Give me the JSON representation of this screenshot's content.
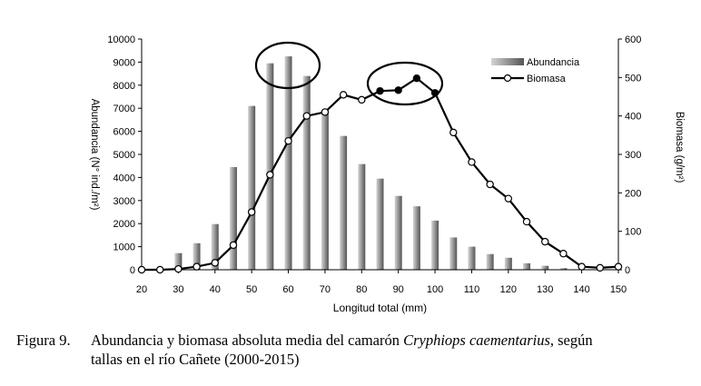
{
  "chart_data": {
    "type": "bar+line",
    "xlabel": "Longitud total (mm)",
    "ylabel_left": "Abundancia (N° ind./m²)",
    "ylabel_right": "Biomasa (g/m²)",
    "ylim_left": [
      0,
      10000
    ],
    "ylim_right": [
      0,
      600
    ],
    "yticks_left": [
      "0",
      "1000",
      "2000",
      "3000",
      "4000",
      "5000",
      "6000",
      "7000",
      "8000",
      "9000",
      "10000"
    ],
    "yticks_right": [
      "0",
      "100",
      "200",
      "300",
      "400",
      "500",
      "600"
    ],
    "xticks": [
      "20",
      "30",
      "40",
      "50",
      "60",
      "70",
      "80",
      "90",
      "100",
      "110",
      "120",
      "130",
      "140",
      "150"
    ],
    "x": [
      20,
      25,
      30,
      35,
      40,
      45,
      50,
      55,
      60,
      65,
      70,
      75,
      80,
      85,
      90,
      95,
      100,
      105,
      110,
      115,
      120,
      125,
      130,
      135,
      140,
      145,
      150
    ],
    "series": [
      {
        "name": "Abundancia",
        "type": "bar",
        "axis": "left",
        "values": [
          0,
          0,
          720,
          1150,
          1980,
          4450,
          7100,
          8950,
          9250,
          8400,
          6950,
          5800,
          4580,
          3950,
          3200,
          2750,
          2130,
          1400,
          1000,
          680,
          520,
          280,
          170,
          70,
          0,
          0,
          0
        ]
      },
      {
        "name": "Biomasa",
        "type": "line",
        "axis": "right",
        "values": [
          0,
          0,
          2,
          8,
          18,
          64,
          150,
          247,
          335,
          400,
          410,
          455,
          442,
          465,
          467,
          498,
          460,
          357,
          280,
          222,
          185,
          125,
          73,
          42,
          8,
          5,
          8
        ],
        "filled_markers_at": [
          85,
          90,
          95,
          100
        ]
      }
    ],
    "annotations": [
      "ellipse around peak bars at 55-60 mm",
      "ellipse around biomass peak at 85-100 mm"
    ],
    "legend_placement": "top-right",
    "grid": false
  },
  "caption": {
    "figure_label": "Figura 9.",
    "text_before_italic": "Abundancia y biomasa absoluta media del camarón ",
    "species_italic": "Cryphiops caementarius",
    "text_after_italic": ", según",
    "line2": "tallas en el río Cañete (2000-2015)"
  },
  "colors": {
    "bar_light": "#cfcfcf",
    "bar_dark": "#6a6a6a",
    "line": "#000000"
  }
}
